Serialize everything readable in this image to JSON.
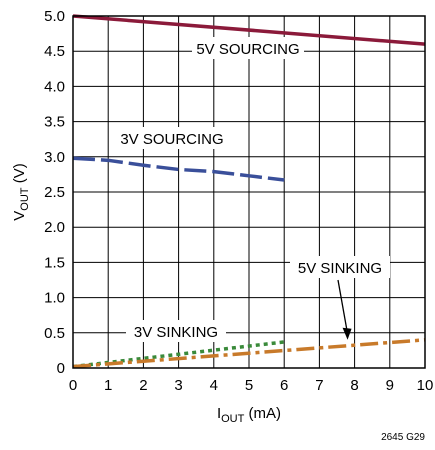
{
  "chart_data": {
    "type": "line",
    "xlabel": {
      "main": "I",
      "sub": "OUT",
      "rest": " (mA)"
    },
    "ylabel": {
      "main": "V",
      "sub": "OUT",
      "rest": " (V)"
    },
    "xlim": [
      0,
      10
    ],
    "ylim": [
      0,
      5
    ],
    "x_ticks": [
      "0",
      "1",
      "2",
      "3",
      "4",
      "5",
      "6",
      "7",
      "8",
      "9",
      "10"
    ],
    "y_ticks": [
      "0",
      "0.5",
      "1.0",
      "1.5",
      "2.0",
      "2.5",
      "3.0",
      "3.5",
      "4.0",
      "4.5",
      "5.0"
    ],
    "grid": true,
    "series": [
      {
        "name": "5V SOURCING",
        "color": "#8b1a3a",
        "style": "solid",
        "x": [
          0,
          10
        ],
        "y": [
          5.0,
          4.6
        ]
      },
      {
        "name": "3V SOURCING",
        "color": "#3a4f9a",
        "style": "dashed",
        "x": [
          0,
          1,
          2,
          3,
          4,
          5,
          6
        ],
        "y": [
          2.98,
          2.95,
          2.88,
          2.82,
          2.79,
          2.73,
          2.67
        ]
      },
      {
        "name": "3V SINKING",
        "color": "#3a8a3a",
        "style": "dotted",
        "x": [
          0,
          6
        ],
        "y": [
          0.02,
          0.37
        ]
      },
      {
        "name": "5V SINKING",
        "color": "#c87a2a",
        "style": "dashdot",
        "x": [
          0,
          10
        ],
        "y": [
          0.02,
          0.4
        ]
      }
    ],
    "annotations": [
      {
        "text": "5V SOURCING",
        "series": "5V SOURCING"
      },
      {
        "text": "3V SOURCING",
        "series": "3V SOURCING"
      },
      {
        "text": "3V SINKING",
        "series": "3V SINKING"
      },
      {
        "text": "5V SINKING",
        "series": "5V SINKING",
        "arrow": true
      }
    ],
    "figure_code": "2645 G29"
  }
}
